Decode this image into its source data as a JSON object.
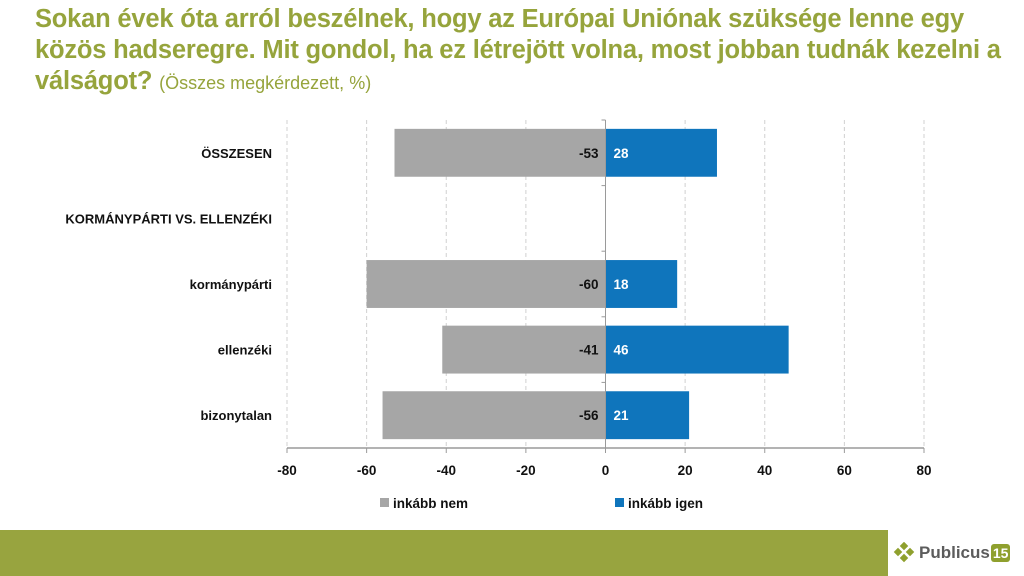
{
  "title": {
    "main": "Sokan évek óta arról beszélnek, hogy az Európai Uniónak szüksége lenne egy közös hadseregre. Mit gondol, ha ez létrejött volna, most jobban tudnák kezelni a válságot?",
    "subtitle": "(Összes megkérdezett, %)"
  },
  "colors": {
    "title": "#96a43c",
    "negative": "#a6a6a6",
    "positive": "#0f75bc",
    "footer": "#98a43f",
    "grid": "#d0d0d0",
    "axis": "#9a9a9a"
  },
  "chart_data": {
    "type": "bar",
    "orientation": "horizontal",
    "stacked": "diverging",
    "title": "Sokan évek óta arról beszélnek, hogy az Európai Uniónak szüksége lenne egy közös hadseregre. Mit gondol, ha ez létrejött volna, most jobban tudnák kezelni a válságot?",
    "subtitle": "(Összes megkérdezett, %)",
    "xlabel": "",
    "ylabel": "",
    "categories": [
      "ÖSSZESEN",
      "KORMÁNYPÁRTI VS. ELLENZÉKI",
      "kormánypárti",
      "ellenzéki",
      "bizonytalan"
    ],
    "series": [
      {
        "name": "inkább nem",
        "values": [
          -53,
          null,
          -60,
          -41,
          -56
        ],
        "color": "#a6a6a6"
      },
      {
        "name": "inkább igen",
        "values": [
          28,
          null,
          18,
          46,
          21
        ],
        "color": "#0f75bc"
      }
    ],
    "xlim": [
      -80,
      80
    ],
    "xticks": [
      -80,
      -60,
      -40,
      -20,
      0,
      20,
      40,
      60,
      80
    ],
    "xtick_labels": [
      "-80",
      "-60",
      "-40",
      "-20",
      "0",
      "20",
      "40",
      "60",
      "80"
    ],
    "grid": "vertical dashed",
    "legend": {
      "position": "bottom",
      "entries": [
        "inkább nem",
        "inkább igen"
      ]
    },
    "data_labels": true
  },
  "footer": {
    "logo_text": "Publicus",
    "logo_number": "15"
  }
}
